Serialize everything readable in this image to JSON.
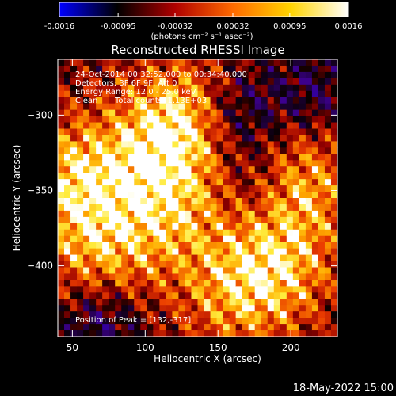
{
  "chart_data": {
    "type": "heatmap",
    "title": "Reconstructed RHESSI Image",
    "xlabel": "Heliocentric X (arcsec)",
    "ylabel": "Heliocentric Y (arcsec)",
    "xlim": [
      40,
      232
    ],
    "ylim": [
      -447,
      -263
    ],
    "xticks": [
      50,
      100,
      150,
      200
    ],
    "yticks": [
      -300,
      -350,
      -400
    ],
    "grid": false,
    "colorbar": {
      "orientation": "horizontal",
      "position": "top",
      "range": [
        -0.0016,
        0.0016
      ],
      "ticks": [
        "-0.0016",
        "-0.00095",
        "-0.00032",
        "0.00032",
        "0.00095",
        "0.0016"
      ],
      "unit": "(photons cm⁻² s⁻¹ asec⁻²)",
      "colors": [
        "#0000ff",
        "#000000",
        "#b00000",
        "#ff6a00",
        "#ffd400",
        "#ffffff"
      ]
    },
    "annotations": {
      "time": "24-Oct-2014 00:32:52.000 to 00:34:40.000",
      "detectors": "Detectors: 3F 6F 9F, Att 0",
      "energy": "Energy Range: 12.0 - 25.0 keV",
      "method": "Clean",
      "counts": "Total counts: 1.13E+03",
      "peak": "Position of Peak = [132,-317]"
    },
    "peak": [
      132,
      -317
    ],
    "hotspots": [
      {
        "x": 130,
        "y": -303,
        "value": 1.0
      },
      {
        "x": 50,
        "y": -343,
        "value": 0.85
      },
      {
        "x": 70,
        "y": -395,
        "value": 0.7
      },
      {
        "x": 205,
        "y": -345,
        "value": 0.8
      },
      {
        "x": 190,
        "y": -400,
        "value": 0.75
      },
      {
        "x": 120,
        "y": -365,
        "value": 0.6
      },
      {
        "x": 100,
        "y": -330,
        "value": 0.5
      },
      {
        "x": 160,
        "y": -420,
        "value": 0.55
      }
    ],
    "negative_regions": [
      {
        "x": 160,
        "y": -300,
        "value": -0.6
      },
      {
        "x": 175,
        "y": -345,
        "value": -0.4
      },
      {
        "x": 70,
        "y": -435,
        "value": -0.5
      },
      {
        "x": 215,
        "y": -285,
        "value": -0.35
      }
    ]
  },
  "footer": {
    "date": "18-May-2022 15:00"
  }
}
